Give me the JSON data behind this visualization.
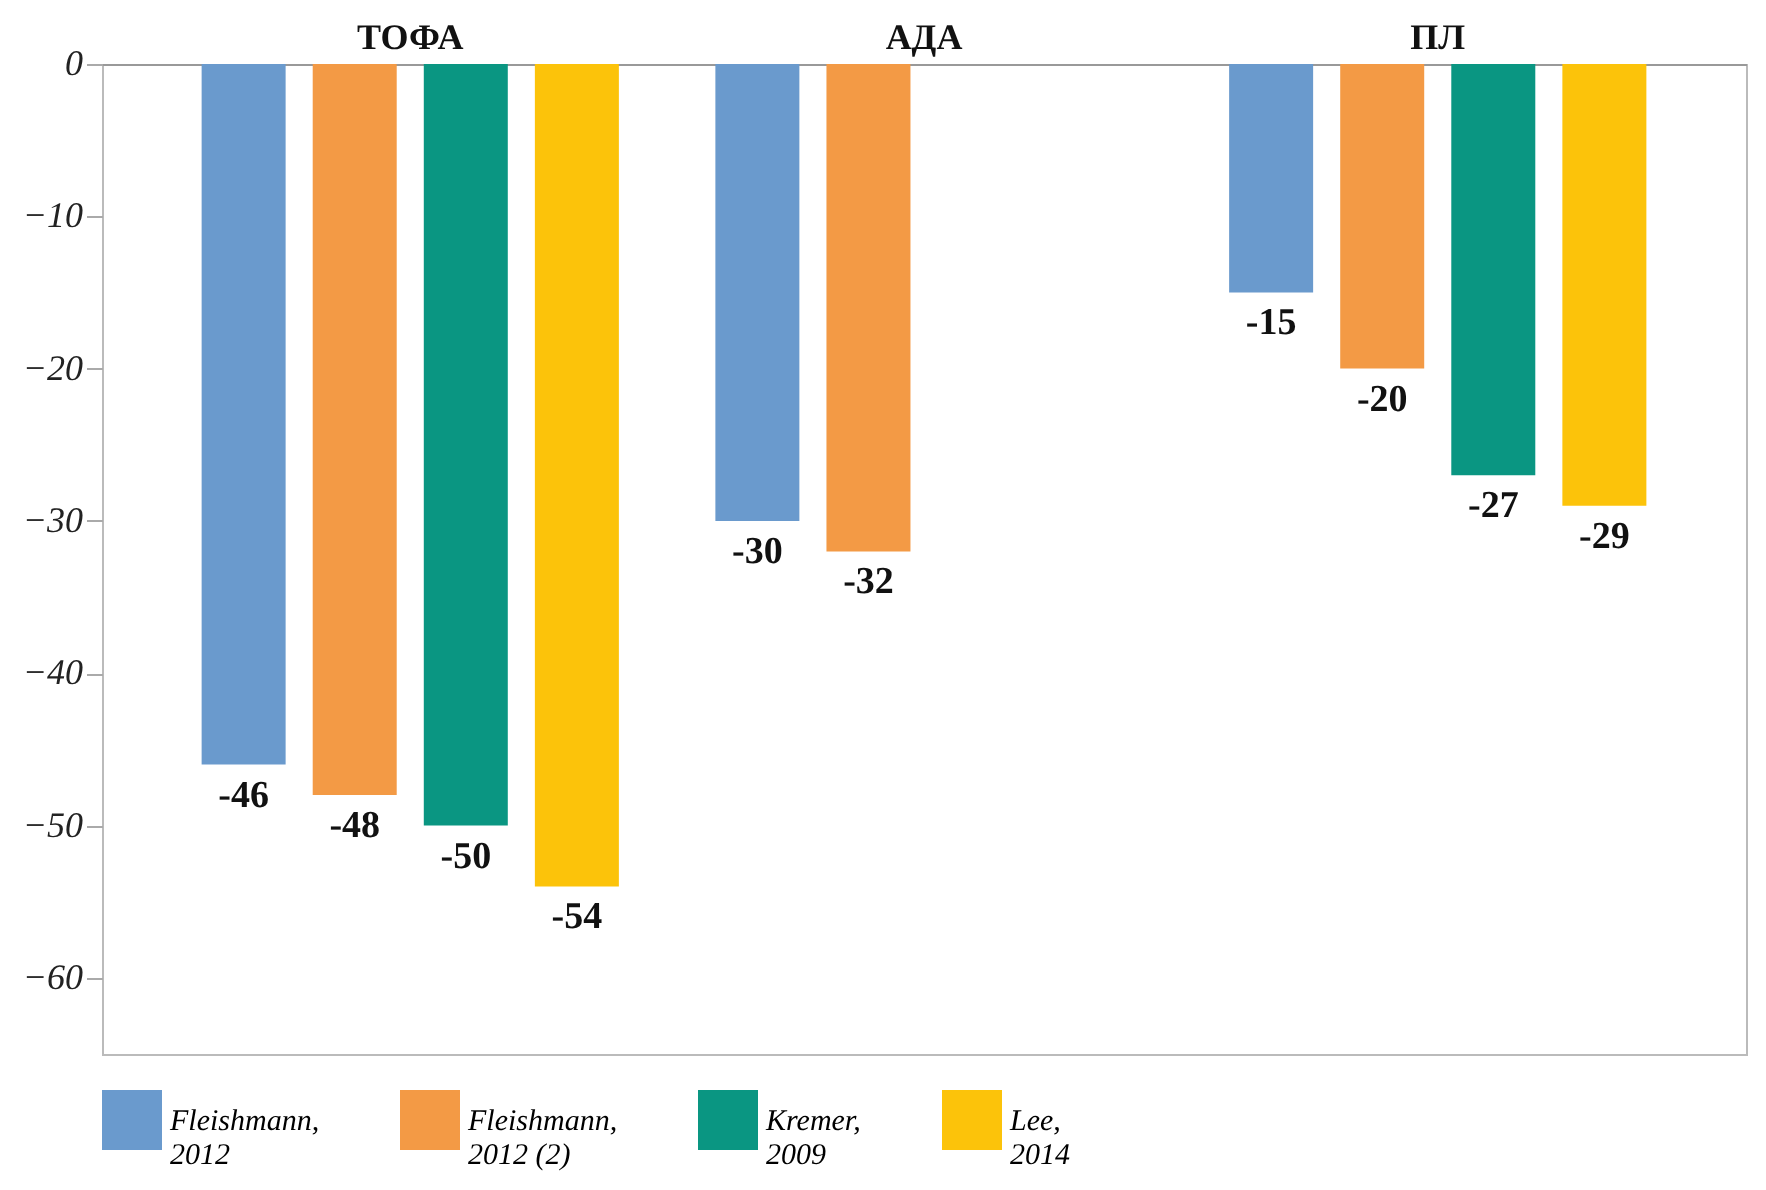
{
  "chart_data": {
    "type": "bar",
    "categories": [
      "ТОФА",
      "АДА",
      "ПЛ"
    ],
    "series": [
      {
        "name": "Fleishmann, 2012",
        "color": "#6a9acd",
        "values": [
          -46,
          -30,
          -15
        ]
      },
      {
        "name": "Fleishmann, 2012 (2)",
        "color": "#f39a45",
        "values": [
          -48,
          -32,
          -20
        ]
      },
      {
        "name": "Kremer, 2009",
        "color": "#0a9682",
        "values": [
          -50,
          null,
          -27
        ]
      },
      {
        "name": "Lee, 2014",
        "color": "#fcc30a",
        "values": [
          -54,
          null,
          -29
        ]
      }
    ],
    "ylim": [
      -65,
      0
    ],
    "yticks": [
      0,
      -10,
      -20,
      -30,
      -40,
      -50,
      -60
    ],
    "grid": false,
    "legend": "bottom",
    "data_labels": true
  }
}
